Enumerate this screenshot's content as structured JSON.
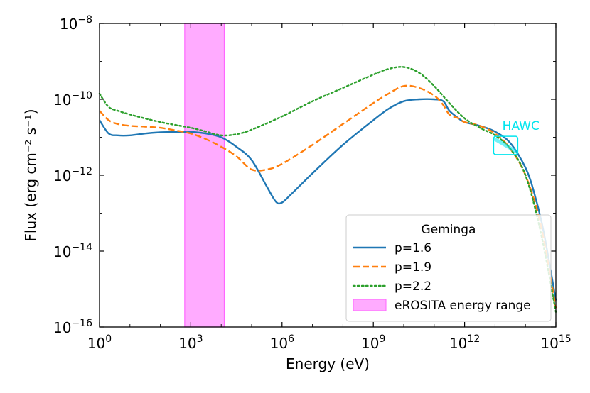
{
  "chart_data": {
    "type": "line",
    "title": "",
    "xlabel": "Energy (eV)",
    "ylabel": "Flux (erg cm⁻² s⁻¹)",
    "xscale": "log",
    "yscale": "log",
    "xlim_log10": [
      0,
      15
    ],
    "ylim_log10": [
      -16,
      -8
    ],
    "x_ticks": [
      {
        "exp": 0,
        "label": "10",
        "sup": "0"
      },
      {
        "exp": 3,
        "label": "10",
        "sup": "3"
      },
      {
        "exp": 6,
        "label": "10",
        "sup": "6"
      },
      {
        "exp": 9,
        "label": "10",
        "sup": "9"
      },
      {
        "exp": 12,
        "label": "10",
        "sup": "12"
      },
      {
        "exp": 15,
        "label": "10",
        "sup": "15"
      }
    ],
    "y_ticks": [
      {
        "exp": -8,
        "label": "10",
        "sup": "−8"
      },
      {
        "exp": -10,
        "label": "10",
        "sup": "−10"
      },
      {
        "exp": -12,
        "label": "10",
        "sup": "−12"
      },
      {
        "exp": -14,
        "label": "10",
        "sup": "−14"
      },
      {
        "exp": -16,
        "label": "10",
        "sup": "−16"
      }
    ],
    "legend": {
      "title": "Geminga",
      "position": "lower-right"
    },
    "band": {
      "name": "eROSITA energy range",
      "x_log10_range": [
        2.8,
        4.1
      ],
      "color": "#ff66ff"
    },
    "annotation": {
      "text": "HAWC",
      "x_log10": 13.1,
      "y_log10": -11.1,
      "range_x_log10": [
        13.0,
        13.7
      ],
      "color": "#00e5ee"
    },
    "series": [
      {
        "name": "p=1.6",
        "color": "#1f77b4",
        "dash": "solid",
        "x_log10": [
          0,
          0.3,
          0.6,
          1,
          1.5,
          2,
          2.5,
          3,
          3.5,
          4,
          4.5,
          5,
          5.5,
          5.8,
          6,
          6.3,
          7,
          8,
          9,
          9.5,
          10,
          10.5,
          11,
          11.3,
          11.5,
          11.8,
          12,
          12.5,
          13,
          13.5,
          14,
          14.3,
          14.6,
          15
        ],
        "y_log10": [
          -10.55,
          -10.9,
          -10.95,
          -10.95,
          -10.9,
          -10.87,
          -10.86,
          -10.86,
          -10.9,
          -11.0,
          -11.25,
          -11.6,
          -12.3,
          -12.7,
          -12.72,
          -12.5,
          -11.95,
          -11.2,
          -10.55,
          -10.25,
          -10.05,
          -10.0,
          -10.0,
          -10.05,
          -10.3,
          -10.5,
          -10.6,
          -10.7,
          -10.85,
          -11.15,
          -11.8,
          -12.5,
          -13.5,
          -15.3
        ]
      },
      {
        "name": "p=1.9",
        "color": "#ff7f0e",
        "dash": "dashed",
        "x_log10": [
          0,
          0.3,
          0.6,
          1,
          1.5,
          2,
          2.5,
          3,
          3.5,
          4,
          4.5,
          5,
          5.5,
          6,
          7,
          8,
          9,
          9.5,
          10,
          10.5,
          11,
          11.3,
          11.5,
          11.8,
          12,
          12.5,
          13,
          13.5,
          14,
          14.5,
          15
        ],
        "y_log10": [
          -10.3,
          -10.55,
          -10.65,
          -10.7,
          -10.72,
          -10.75,
          -10.82,
          -10.9,
          -11.05,
          -11.25,
          -11.5,
          -11.85,
          -11.85,
          -11.7,
          -11.2,
          -10.65,
          -10.1,
          -9.85,
          -9.65,
          -9.7,
          -9.9,
          -10.15,
          -10.4,
          -10.5,
          -10.6,
          -10.7,
          -10.9,
          -11.3,
          -12.0,
          -13.3,
          -15.5
        ]
      },
      {
        "name": "p=2.2",
        "color": "#2ca02c",
        "dash": "dotted",
        "x_log10": [
          0,
          0.3,
          0.6,
          1,
          2,
          3,
          3.5,
          4,
          4.5,
          5,
          6,
          7,
          8,
          9,
          9.5,
          10,
          10.5,
          11,
          11.5,
          12,
          12.5,
          13,
          13.5,
          14,
          14.5,
          15
        ],
        "y_log10": [
          -9.85,
          -10.2,
          -10.3,
          -10.4,
          -10.6,
          -10.75,
          -10.85,
          -10.95,
          -10.92,
          -10.8,
          -10.45,
          -10.05,
          -9.7,
          -9.35,
          -9.2,
          -9.15,
          -9.3,
          -9.65,
          -10.1,
          -10.5,
          -10.75,
          -10.95,
          -11.3,
          -12.0,
          -13.5,
          -15.6
        ]
      }
    ]
  }
}
